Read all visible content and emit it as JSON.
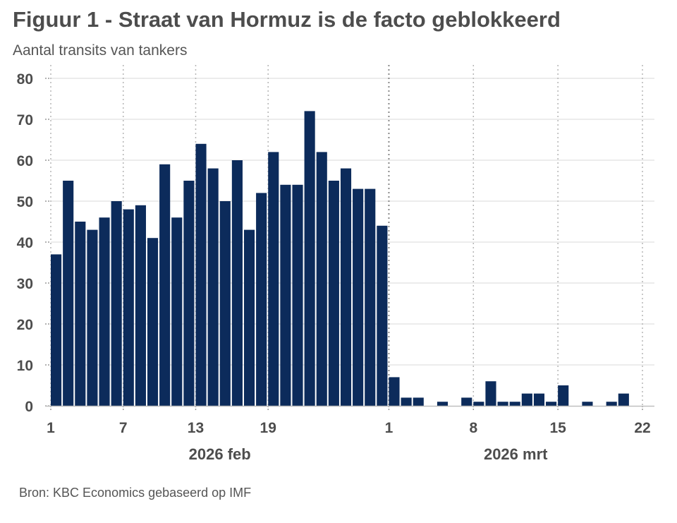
{
  "chart_data": {
    "type": "bar",
    "title": "Figuur 1 - Straat van Hormuz is de facto geblokkeerd",
    "subtitle": "Aantal transits van tankers",
    "source": "Bron: KBC Economics gebaseerd op IMF",
    "xlabel": "",
    "ylabel": "",
    "ylim": [
      0,
      80
    ],
    "yticks": [
      "0",
      "10",
      "20",
      "30",
      "40",
      "50",
      "60",
      "70",
      "80"
    ],
    "grid": true,
    "colors": {
      "bar": "#0c2b5b",
      "grid": "#d9d9d9",
      "text": "#4d4d4d"
    },
    "x_start": "2026-02-01",
    "x_end": "2026-03-22",
    "xtick_labels": [
      {
        "date": "2026-02-01",
        "label": "1"
      },
      {
        "date": "2026-02-07",
        "label": "7"
      },
      {
        "date": "2026-02-13",
        "label": "13"
      },
      {
        "date": "2026-02-19",
        "label": "19"
      },
      {
        "date": "2026-03-01",
        "label": "1"
      },
      {
        "date": "2026-03-08",
        "label": "8"
      },
      {
        "date": "2026-03-15",
        "label": "15"
      },
      {
        "date": "2026-03-22",
        "label": "22"
      }
    ],
    "month_labels": [
      {
        "label": "2026 feb",
        "from": "2026-02-01",
        "to": "2026-03-01"
      },
      {
        "label": "2026 mrt",
        "from": "2026-03-01",
        "to": "2026-03-22"
      }
    ],
    "x": [
      "2026-02-01",
      "2026-02-02",
      "2026-02-03",
      "2026-02-04",
      "2026-02-05",
      "2026-02-06",
      "2026-02-07",
      "2026-02-08",
      "2026-02-09",
      "2026-02-10",
      "2026-02-11",
      "2026-02-12",
      "2026-02-13",
      "2026-02-14",
      "2026-02-15",
      "2026-02-16",
      "2026-02-17",
      "2026-02-18",
      "2026-02-19",
      "2026-02-20",
      "2026-02-21",
      "2026-02-22",
      "2026-02-23",
      "2026-02-24",
      "2026-02-25",
      "2026-02-26",
      "2026-02-27",
      "2026-02-28",
      "2026-03-01",
      "2026-03-02",
      "2026-03-03",
      "2026-03-04",
      "2026-03-05",
      "2026-03-06",
      "2026-03-07",
      "2026-03-08",
      "2026-03-09",
      "2026-03-10",
      "2026-03-11",
      "2026-03-12",
      "2026-03-13",
      "2026-03-14",
      "2026-03-15",
      "2026-03-16",
      "2026-03-17",
      "2026-03-18",
      "2026-03-19",
      "2026-03-20",
      "2026-03-21"
    ],
    "values": [
      37,
      55,
      45,
      43,
      46,
      50,
      48,
      49,
      41,
      59,
      46,
      55,
      64,
      58,
      50,
      60,
      43,
      52,
      62,
      54,
      54,
      72,
      62,
      55,
      58,
      53,
      53,
      44,
      7,
      2,
      2,
      0,
      1,
      0,
      2,
      1,
      6,
      1,
      1,
      3,
      3,
      1,
      5,
      0,
      1,
      0,
      1,
      3,
      0
    ]
  }
}
